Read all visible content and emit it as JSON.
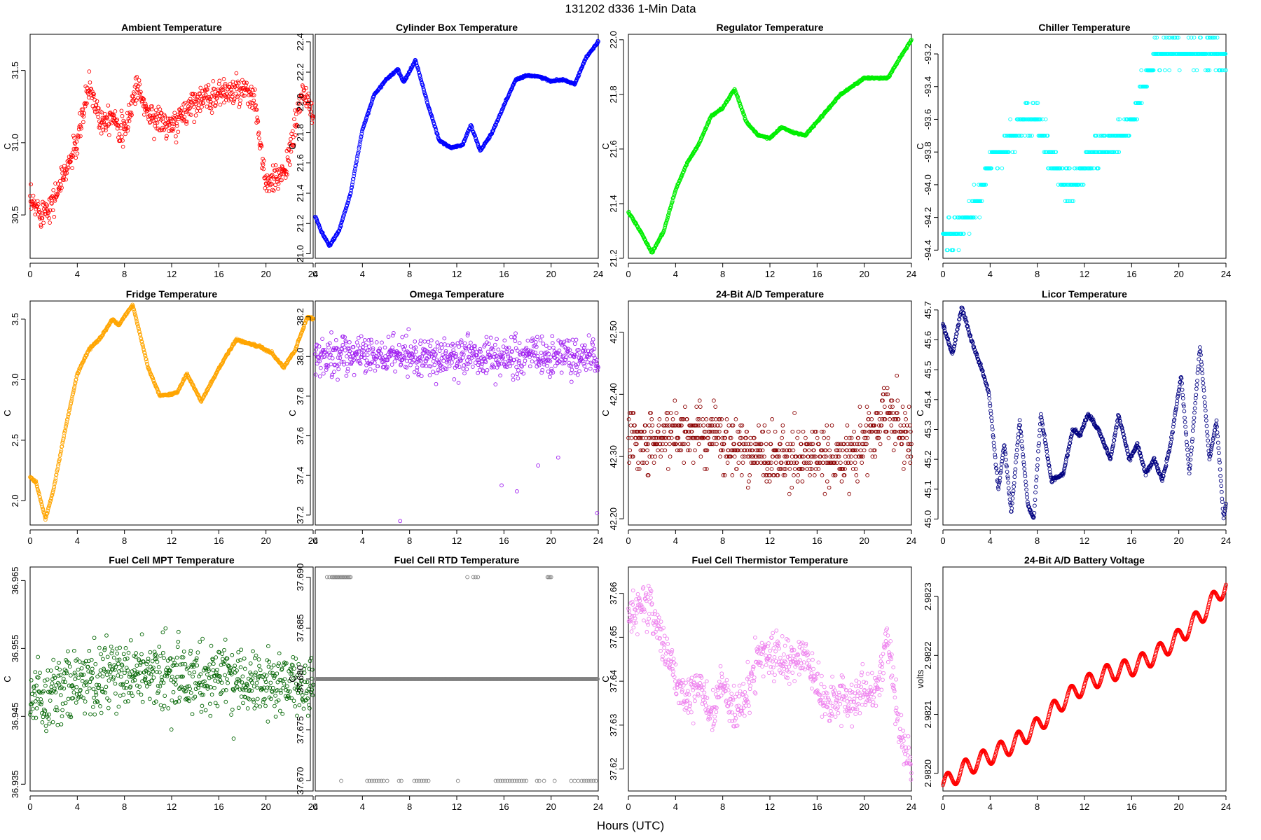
{
  "figure": {
    "title": "131202   d336   1-Min Data",
    "xlabel": "Hours (UTC)"
  },
  "chart_data": [
    {
      "type": "scatter",
      "title": "Ambient Temperature",
      "ylabel": "C",
      "color": "#ff0000",
      "xlim": [
        0,
        24
      ],
      "ylim": [
        30.2,
        31.75
      ],
      "x_ticks": [
        0,
        4,
        8,
        12,
        16,
        20,
        24
      ],
      "y_ticks": [
        30.5,
        31.0,
        31.5
      ],
      "y_tick_labels": [
        "30.5",
        "31.0",
        "31.5"
      ],
      "profile": [
        [
          0,
          30.58
        ],
        [
          1,
          30.52
        ],
        [
          2,
          30.6
        ],
        [
          3,
          30.8
        ],
        [
          4,
          31.0
        ],
        [
          5,
          31.4
        ],
        [
          6,
          31.15
        ],
        [
          7,
          31.2
        ],
        [
          8,
          31.05
        ],
        [
          9,
          31.4
        ],
        [
          10,
          31.2
        ],
        [
          11,
          31.15
        ],
        [
          12,
          31.1
        ],
        [
          13,
          31.2
        ],
        [
          14,
          31.3
        ],
        [
          15,
          31.3
        ],
        [
          16,
          31.35
        ],
        [
          17,
          31.35
        ],
        [
          18,
          31.35
        ],
        [
          19,
          31.3
        ],
        [
          20,
          30.7
        ],
        [
          21,
          30.75
        ],
        [
          22,
          30.9
        ],
        [
          23,
          31.35
        ],
        [
          24,
          31.2
        ]
      ],
      "spread": 0.12
    },
    {
      "type": "scatter",
      "title": "Cylinder Box Temperature",
      "ylabel": "C",
      "color": "#0000ff",
      "xlim": [
        0,
        24
      ],
      "ylim": [
        20.97,
        22.45
      ],
      "x_ticks": [
        0,
        4,
        8,
        12,
        16,
        20,
        24
      ],
      "y_ticks": [
        21.0,
        21.2,
        21.4,
        21.6,
        21.8,
        22.0,
        22.2,
        22.4
      ],
      "y_tick_labels": [
        "21.0",
        "21.2",
        "21.4",
        "21.6",
        "21.8",
        "22.0",
        "22.2",
        "22.4"
      ],
      "profile": [
        [
          0,
          21.25
        ],
        [
          0.5,
          21.15
        ],
        [
          1.2,
          21.05
        ],
        [
          2,
          21.15
        ],
        [
          3,
          21.4
        ],
        [
          4,
          21.82
        ],
        [
          5,
          22.05
        ],
        [
          6,
          22.15
        ],
        [
          7,
          22.22
        ],
        [
          7.5,
          22.13
        ],
        [
          8.5,
          22.28
        ],
        [
          9.5,
          22.0
        ],
        [
          10.5,
          21.75
        ],
        [
          11.5,
          21.7
        ],
        [
          12.5,
          21.72
        ],
        [
          13.2,
          21.85
        ],
        [
          14,
          21.68
        ],
        [
          15,
          21.8
        ],
        [
          16,
          21.98
        ],
        [
          17,
          22.15
        ],
        [
          18,
          22.18
        ],
        [
          19,
          22.17
        ],
        [
          20,
          22.14
        ],
        [
          21,
          22.15
        ],
        [
          22,
          22.12
        ],
        [
          23,
          22.3
        ],
        [
          24,
          22.4
        ]
      ],
      "spread": 0.008
    },
    {
      "type": "scatter",
      "title": "Regulator Temperature",
      "ylabel": "C",
      "color": "#00ee00",
      "xlim": [
        0,
        24
      ],
      "ylim": [
        21.2,
        22.02
      ],
      "x_ticks": [
        0,
        4,
        8,
        12,
        16,
        20,
        24
      ],
      "y_ticks": [
        21.2,
        21.4,
        21.6,
        21.8,
        22.0
      ],
      "y_tick_labels": [
        "21.2",
        "21.4",
        "21.6",
        "21.8",
        "22.0"
      ],
      "profile": [
        [
          0,
          21.37
        ],
        [
          1,
          21.3
        ],
        [
          2,
          21.22
        ],
        [
          3,
          21.3
        ],
        [
          4,
          21.45
        ],
        [
          5,
          21.55
        ],
        [
          6,
          21.62
        ],
        [
          7,
          21.72
        ],
        [
          8,
          21.75
        ],
        [
          9,
          21.82
        ],
        [
          10,
          21.7
        ],
        [
          11,
          21.65
        ],
        [
          12,
          21.64
        ],
        [
          13,
          21.68
        ],
        [
          14,
          21.66
        ],
        [
          15,
          21.65
        ],
        [
          16,
          21.7
        ],
        [
          17,
          21.75
        ],
        [
          18,
          21.8
        ],
        [
          19,
          21.83
        ],
        [
          20,
          21.86
        ],
        [
          21,
          21.86
        ],
        [
          22,
          21.86
        ],
        [
          23,
          21.93
        ],
        [
          24,
          22.0
        ]
      ],
      "spread": 0.004
    },
    {
      "type": "scatter",
      "title": "Chiller Temperature",
      "ylabel": "C",
      "color": "#00ffff",
      "xlim": [
        0,
        24
      ],
      "ylim": [
        -94.45,
        -93.08
      ],
      "x_ticks": [
        0,
        4,
        8,
        12,
        16,
        20,
        24
      ],
      "y_ticks": [
        -94.4,
        -94.2,
        -94.0,
        -93.8,
        -93.6,
        -93.4,
        -93.2
      ],
      "y_tick_labels": [
        "-94.4",
        "-94.2",
        "-94.0",
        "-93.8",
        "-93.6",
        "-93.4",
        "-93.2"
      ],
      "profile": [
        [
          0,
          -94.3
        ],
        [
          1,
          -94.3
        ],
        [
          2,
          -94.2
        ],
        [
          3,
          -94.1
        ],
        [
          4,
          -93.85
        ],
        [
          5,
          -93.8
        ],
        [
          6,
          -93.7
        ],
        [
          7,
          -93.6
        ],
        [
          8,
          -93.6
        ],
        [
          9,
          -93.8
        ],
        [
          10,
          -93.95
        ],
        [
          11,
          -94.0
        ],
        [
          12,
          -93.9
        ],
        [
          13,
          -93.8
        ],
        [
          14,
          -93.75
        ],
        [
          15,
          -93.7
        ],
        [
          16,
          -93.6
        ],
        [
          17,
          -93.4
        ],
        [
          18,
          -93.2
        ],
        [
          19,
          -93.2
        ],
        [
          20,
          -93.2
        ],
        [
          21,
          -93.2
        ],
        [
          22,
          -93.2
        ],
        [
          23,
          -93.2
        ],
        [
          24,
          -93.25
        ]
      ],
      "spread": 0.1,
      "quantum": 0.1
    },
    {
      "type": "scatter",
      "title": "Fridge Temperature",
      "ylabel": "C",
      "color": "#ffa500",
      "xlim": [
        0,
        24
      ],
      "ylim": [
        1.8,
        3.65
      ],
      "x_ticks": [
        0,
        4,
        8,
        12,
        16,
        20,
        24
      ],
      "y_ticks": [
        2.0,
        2.5,
        3.0,
        3.5
      ],
      "y_tick_labels": [
        "2.0",
        "2.5",
        "3.0",
        "3.5"
      ],
      "profile": [
        [
          0,
          2.2
        ],
        [
          0.5,
          2.15
        ],
        [
          1.3,
          1.85
        ],
        [
          2,
          2.1
        ],
        [
          3,
          2.6
        ],
        [
          4,
          3.05
        ],
        [
          5,
          3.25
        ],
        [
          6,
          3.35
        ],
        [
          7,
          3.5
        ],
        [
          7.5,
          3.45
        ],
        [
          8.7,
          3.62
        ],
        [
          10,
          3.1
        ],
        [
          11,
          2.87
        ],
        [
          12,
          2.88
        ],
        [
          12.5,
          2.9
        ],
        [
          13.3,
          3.05
        ],
        [
          14.5,
          2.82
        ],
        [
          15.5,
          3.0
        ],
        [
          16.5,
          3.18
        ],
        [
          17.5,
          3.33
        ],
        [
          18.5,
          3.3
        ],
        [
          19.5,
          3.27
        ],
        [
          20.5,
          3.22
        ],
        [
          21.5,
          3.1
        ],
        [
          22.5,
          3.25
        ],
        [
          23.5,
          3.52
        ],
        [
          24,
          3.5
        ]
      ],
      "spread": 0.01
    },
    {
      "type": "scatter",
      "title": "Omega Temperature",
      "ylabel": "C",
      "color": "#a020f0",
      "xlim": [
        0,
        24
      ],
      "ylim": [
        37.15,
        38.28
      ],
      "x_ticks": [
        0,
        4,
        8,
        12,
        16,
        20,
        24
      ],
      "y_ticks": [
        37.2,
        37.4,
        37.6,
        37.8,
        38.0,
        38.2
      ],
      "y_tick_labels": [
        "37.2",
        "37.4",
        "37.6",
        "37.8",
        "38.0",
        "38.2"
      ],
      "profile": [
        [
          0,
          38.0
        ],
        [
          24,
          38.0
        ]
      ],
      "spread": 0.12,
      "outliers": [
        [
          7.2,
          37.17
        ],
        [
          15.8,
          37.35
        ],
        [
          17.1,
          37.32
        ],
        [
          18.9,
          37.45
        ],
        [
          20.6,
          37.49
        ],
        [
          23.9,
          37.21
        ]
      ]
    },
    {
      "type": "scatter",
      "title": "24-Bit A/D Temperature",
      "ylabel": "C",
      "color": "#8b0000",
      "xlim": [
        0,
        24
      ],
      "ylim": [
        42.19,
        42.55
      ],
      "x_ticks": [
        0,
        4,
        8,
        12,
        16,
        20,
        24
      ],
      "y_ticks": [
        42.2,
        42.3,
        42.4,
        42.5
      ],
      "y_tick_labels": [
        "42.20",
        "42.30",
        "42.40",
        "42.50"
      ],
      "profile": [
        [
          0,
          42.33
        ],
        [
          6,
          42.34
        ],
        [
          12,
          42.3
        ],
        [
          18,
          42.3
        ],
        [
          21,
          42.34
        ],
        [
          22,
          42.38
        ],
        [
          24,
          42.32
        ]
      ],
      "spread": 0.06,
      "quantum": 0.01
    },
    {
      "type": "scatter",
      "title": "Licor Temperature",
      "ylabel": "C",
      "color": "#000080",
      "xlim": [
        0,
        24
      ],
      "ylim": [
        44.98,
        45.73
      ],
      "x_ticks": [
        0,
        4,
        8,
        12,
        16,
        20,
        24
      ],
      "y_ticks": [
        45.0,
        45.1,
        45.2,
        45.3,
        45.4,
        45.5,
        45.6,
        45.7
      ],
      "y_tick_labels": [
        "45.0",
        "45.1",
        "45.2",
        "45.3",
        "45.4",
        "45.5",
        "45.6",
        "45.7"
      ],
      "profile": [
        [
          0,
          45.65
        ],
        [
          0.8,
          45.55
        ],
        [
          1.6,
          45.71
        ],
        [
          2.4,
          45.6
        ],
        [
          3.3,
          45.5
        ],
        [
          3.9,
          45.42
        ],
        [
          4.7,
          45.1
        ],
        [
          5.2,
          45.25
        ],
        [
          5.8,
          45.02
        ],
        [
          6.5,
          45.33
        ],
        [
          7.2,
          45.05
        ],
        [
          7.7,
          45.0
        ],
        [
          8.3,
          45.35
        ],
        [
          9.2,
          45.13
        ],
        [
          10.2,
          45.15
        ],
        [
          11,
          45.3
        ],
        [
          11.6,
          45.28
        ],
        [
          12.3,
          45.35
        ],
        [
          13.2,
          45.3
        ],
        [
          14.2,
          45.2
        ],
        [
          14.9,
          45.35
        ],
        [
          15.8,
          45.2
        ],
        [
          16.5,
          45.25
        ],
        [
          17.2,
          45.15
        ],
        [
          17.9,
          45.2
        ],
        [
          18.6,
          45.13
        ],
        [
          19.3,
          45.25
        ],
        [
          20.2,
          45.48
        ],
        [
          20.9,
          45.15
        ],
        [
          21.8,
          45.58
        ],
        [
          22.6,
          45.2
        ],
        [
          23.2,
          45.33
        ],
        [
          23.8,
          45.0
        ],
        [
          24,
          45.05
        ]
      ],
      "spread": 0.008
    },
    {
      "type": "scatter",
      "title": "Fuel Cell MPT Temperature",
      "ylabel": "C",
      "color": "#006400",
      "xlim": [
        0,
        24
      ],
      "ylim": [
        36.934,
        36.967
      ],
      "x_ticks": [
        0,
        4,
        8,
        12,
        16,
        20,
        24
      ],
      "y_ticks": [
        36.935,
        36.945,
        36.955,
        36.965
      ],
      "y_tick_labels": [
        "36.935",
        "36.945",
        "36.955",
        "36.965"
      ],
      "profile": [
        [
          0,
          36.948
        ],
        [
          8,
          36.951
        ],
        [
          16,
          36.951
        ],
        [
          24,
          36.949
        ]
      ],
      "spread": 0.006
    },
    {
      "type": "scatter",
      "title": "Fuel Cell RTD Temperature",
      "ylabel": "C",
      "color": "#808080",
      "xlim": [
        0,
        24
      ],
      "ylim": [
        37.669,
        37.691
      ],
      "x_ticks": [
        0,
        4,
        8,
        12,
        16,
        20,
        24
      ],
      "y_ticks": [
        37.67,
        37.675,
        37.68,
        37.685,
        37.69
      ],
      "y_tick_labels": [
        "37.670",
        "37.675",
        "37.680",
        "37.685",
        "37.690"
      ],
      "levels": [
        37.68
      ],
      "upper_level": 37.69,
      "upper_x": [
        1.0,
        1.2,
        1.4,
        1.5,
        1.6,
        1.7,
        1.8,
        1.9,
        2.0,
        2.1,
        2.2,
        2.3,
        2.4,
        2.5,
        2.6,
        2.7,
        2.8,
        2.9,
        3.0,
        12.9,
        13.4,
        13.6,
        13.8,
        19.7,
        19.8,
        19.9,
        20.0
      ],
      "lower_level": 37.67,
      "lower_x": [
        2.2,
        4.4,
        4.6,
        4.8,
        5.0,
        5.2,
        5.4,
        5.6,
        5.8,
        6.1,
        7.1,
        7.3,
        8.4,
        8.6,
        8.8,
        9.0,
        9.2,
        9.4,
        9.6,
        12.1,
        15.3,
        15.5,
        15.7,
        15.9,
        16.1,
        16.3,
        16.5,
        16.7,
        16.9,
        17.1,
        17.3,
        17.5,
        17.7,
        17.9,
        18.8,
        19.0,
        19.4,
        20.3,
        21.7,
        22.0,
        22.3,
        22.6,
        22.8,
        23.0,
        23.2,
        23.4,
        23.6,
        23.8
      ]
    },
    {
      "type": "scatter",
      "title": "Fuel Cell Thermistor Temperature",
      "ylabel": "C",
      "color": "#ee82ee",
      "xlim": [
        0,
        24
      ],
      "ylim": [
        37.615,
        37.666
      ],
      "x_ticks": [
        0,
        4,
        8,
        12,
        16,
        20,
        24
      ],
      "y_ticks": [
        37.62,
        37.63,
        37.64,
        37.65,
        37.66
      ],
      "y_tick_labels": [
        "37.62",
        "37.63",
        "37.64",
        "37.65",
        "37.66"
      ],
      "profile": [
        [
          0,
          37.655
        ],
        [
          1,
          37.658
        ],
        [
          2,
          37.656
        ],
        [
          3,
          37.648
        ],
        [
          4,
          37.64
        ],
        [
          5,
          37.635
        ],
        [
          6,
          37.64
        ],
        [
          7,
          37.632
        ],
        [
          8,
          37.64
        ],
        [
          9,
          37.633
        ],
        [
          10,
          37.636
        ],
        [
          11,
          37.645
        ],
        [
          12,
          37.647
        ],
        [
          13,
          37.645
        ],
        [
          14,
          37.644
        ],
        [
          15,
          37.646
        ],
        [
          16,
          37.638
        ],
        [
          17,
          37.635
        ],
        [
          18,
          37.636
        ],
        [
          19,
          37.635
        ],
        [
          20,
          37.638
        ],
        [
          21,
          37.637
        ],
        [
          22,
          37.65
        ],
        [
          23,
          37.628
        ],
        [
          24,
          37.62
        ]
      ],
      "spread": 0.006
    },
    {
      "type": "scatter",
      "title": "24-Bit A/D Battery Voltage",
      "ylabel": "volts",
      "color": "#ff0000",
      "xlim": [
        0,
        24
      ],
      "ylim": [
        2.98197,
        2.98235
      ],
      "x_ticks": [
        0,
        4,
        8,
        12,
        16,
        20,
        24
      ],
      "y_ticks": [
        2.982,
        2.9821,
        2.9822,
        2.9823
      ],
      "y_tick_labels": [
        "2.9820",
        "2.9821",
        "2.9822",
        "2.9823"
      ],
      "profile": [
        [
          0,
          2.98198
        ],
        [
          2,
          2.98201
        ],
        [
          4,
          2.98203
        ],
        [
          6,
          2.98205
        ],
        [
          8,
          2.98208
        ],
        [
          10,
          2.98212
        ],
        [
          12,
          2.98215
        ],
        [
          14,
          2.98217
        ],
        [
          16,
          2.98218
        ],
        [
          18,
          2.9822
        ],
        [
          20,
          2.98223
        ],
        [
          22,
          2.98227
        ],
        [
          24,
          2.98232
        ]
      ],
      "spread": 0.0,
      "wave_amp": 1.5e-05,
      "wave_period": 1.5
    }
  ]
}
